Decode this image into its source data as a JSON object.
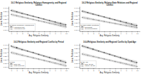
{
  "chart_data": [
    {
      "type": "line",
      "title": "3.6.1 Religious Similarity, Religious Homogeneity, and Regional Conflict",
      "x_label": "Avg. Religious Similarity",
      "y_label": "Linear Prediction",
      "legend_title": "Regional Religious Homogeneity",
      "legend": "lower left",
      "grid": false,
      "x": [
        0,
        1,
        2,
        3,
        4,
        5,
        6,
        7,
        8,
        9,
        10
      ],
      "xlim": [
        -0.5,
        10.5
      ],
      "xticks": [
        0,
        1,
        2,
        3,
        4,
        5,
        6,
        7,
        8,
        9,
        10
      ],
      "ylim": [
        0.08,
        0.42
      ],
      "yticks": [
        {
          "value": 0.1,
          "label": "0.10"
        },
        0.15,
        {
          "value": 0.2,
          "label": "0.20"
        },
        0.25,
        {
          "value": 0.3,
          "label": "0.30"
        },
        0.35,
        {
          "value": 0.4,
          "label": "0.40"
        }
      ],
      "series": [
        {
          "name": "Homogeneous",
          "color": "#333333",
          "line_style": "solid",
          "marker": "square",
          "values": [
            0.365,
            0.345,
            0.325,
            0.305,
            0.285,
            0.265,
            0.245,
            0.225,
            0.205,
            0.185,
            0.165
          ],
          "upper": [
            0.385,
            0.363,
            0.341,
            0.319,
            0.297,
            0.277,
            0.258,
            0.24,
            0.222,
            0.204,
            0.19
          ],
          "lower": [
            0.345,
            0.327,
            0.309,
            0.291,
            0.273,
            0.253,
            0.232,
            0.21,
            0.188,
            0.166,
            0.14
          ]
        },
        {
          "name": "Heterogeneous",
          "color": "#555555",
          "line_style": "dashed",
          "marker": "circle",
          "values": [
            0.31,
            0.293,
            0.276,
            0.259,
            0.242,
            0.225,
            0.208,
            0.191,
            0.174,
            0.157,
            0.14
          ],
          "upper": [
            0.33,
            0.311,
            0.292,
            0.273,
            0.256,
            0.239,
            0.223,
            0.207,
            0.191,
            0.176,
            0.163
          ],
          "lower": [
            0.29,
            0.275,
            0.26,
            0.245,
            0.228,
            0.211,
            0.193,
            0.175,
            0.157,
            0.138,
            0.117
          ]
        }
      ]
    },
    {
      "type": "line",
      "title": "3.6.2 Religious Similarity, Religion-State Relations and Regional Conflict",
      "x_label": "Avg. Religious Similarity",
      "y_label": "Linear Prediction",
      "legend_title": "Religion-State Relations",
      "legend": "lower left",
      "grid": false,
      "x": [
        0,
        1,
        2,
        3,
        4,
        5,
        6,
        7,
        8,
        9,
        10
      ],
      "xlim": [
        -0.5,
        10.5
      ],
      "xticks": [
        0,
        1,
        2,
        3,
        4,
        5,
        6,
        7,
        8,
        9,
        10
      ],
      "ylim": [
        0.08,
        0.42
      ],
      "yticks": [
        {
          "value": 0.1,
          "label": "0.10"
        },
        0.15,
        {
          "value": 0.2,
          "label": "0.20"
        },
        0.25,
        {
          "value": 0.3,
          "label": "0.30"
        },
        0.35,
        {
          "value": 0.4,
          "label": "0.40"
        }
      ],
      "series": [
        {
          "name": "Separatist",
          "color": "#333333",
          "line_style": "solid",
          "marker": "square",
          "values": [
            0.355,
            0.335,
            0.315,
            0.295,
            0.275,
            0.255,
            0.235,
            0.215,
            0.195,
            0.175,
            0.155
          ],
          "upper": [
            0.375,
            0.353,
            0.331,
            0.309,
            0.289,
            0.27,
            0.251,
            0.233,
            0.215,
            0.197,
            0.182
          ],
          "lower": [
            0.335,
            0.317,
            0.299,
            0.281,
            0.261,
            0.24,
            0.219,
            0.197,
            0.175,
            0.153,
            0.128
          ]
        },
        {
          "name": "Co-determination",
          "color": "#555555",
          "line_style": "dashed",
          "marker": "circle",
          "values": [
            0.27,
            0.256,
            0.242,
            0.228,
            0.214,
            0.2,
            0.186,
            0.172,
            0.158,
            0.144,
            0.13
          ],
          "upper": [
            0.29,
            0.274,
            0.258,
            0.242,
            0.228,
            0.214,
            0.2,
            0.187,
            0.174,
            0.161,
            0.15
          ],
          "lower": [
            0.25,
            0.238,
            0.226,
            0.214,
            0.2,
            0.186,
            0.172,
            0.157,
            0.142,
            0.127,
            0.11
          ]
        }
      ]
    },
    {
      "type": "line",
      "title": "3.6.3 Religious Similarity and Regional Conflict by Period",
      "x_label": "Avg. Religious Similarity",
      "y_label": "Linear Prediction",
      "legend_title": "Period",
      "legend": "lower left",
      "grid": false,
      "x": [
        0,
        1,
        2,
        3,
        4,
        5,
        6,
        7,
        8,
        9,
        10
      ],
      "xlim": [
        -0.5,
        10.5
      ],
      "xticks": [
        0,
        1,
        2,
        3,
        4,
        5,
        6,
        7,
        8,
        9,
        10
      ],
      "ylim": [
        0.08,
        0.42
      ],
      "yticks": [
        {
          "value": 0.1,
          "label": "0.10"
        },
        0.15,
        {
          "value": 0.2,
          "label": "0.20"
        },
        0.25,
        {
          "value": 0.3,
          "label": "0.30"
        },
        0.35,
        {
          "value": 0.4,
          "label": "0.40"
        }
      ],
      "series": [
        {
          "name": "Cold War",
          "color": "#333333",
          "line_style": "solid",
          "marker": "square",
          "values": [
            0.38,
            0.358,
            0.336,
            0.314,
            0.292,
            0.27,
            0.248,
            0.226,
            0.204,
            0.182,
            0.16
          ],
          "upper": [
            0.4,
            0.376,
            0.352,
            0.328,
            0.306,
            0.284,
            0.263,
            0.243,
            0.223,
            0.203,
            0.185
          ],
          "lower": [
            0.36,
            0.34,
            0.32,
            0.3,
            0.278,
            0.256,
            0.233,
            0.209,
            0.185,
            0.161,
            0.135
          ]
        },
        {
          "name": "Post-Cold War",
          "color": "#555555",
          "line_style": "dashed",
          "marker": "circle",
          "values": [
            0.295,
            0.277,
            0.259,
            0.241,
            0.223,
            0.205,
            0.187,
            0.169,
            0.151,
            0.133,
            0.115
          ],
          "upper": [
            0.315,
            0.295,
            0.275,
            0.255,
            0.237,
            0.219,
            0.202,
            0.185,
            0.168,
            0.151,
            0.137
          ],
          "lower": [
            0.275,
            0.259,
            0.243,
            0.227,
            0.209,
            0.191,
            0.172,
            0.153,
            0.134,
            0.115,
            0.093
          ]
        }
      ]
    },
    {
      "type": "line",
      "title": "3.6.4 Religious Similarity and Regional Conflict by Dyad Age",
      "x_label": "Avg. Religious Similarity",
      "y_label": "Linear Prediction",
      "legend_title": "Dyad Age",
      "legend": "lower left",
      "grid": false,
      "x": [
        0,
        1,
        2,
        3,
        4,
        5,
        6,
        7,
        8,
        9,
        10
      ],
      "xlim": [
        -0.5,
        10.5
      ],
      "xticks": [
        0,
        1,
        2,
        3,
        4,
        5,
        6,
        7,
        8,
        9,
        10
      ],
      "ylim": [
        0.08,
        0.42
      ],
      "yticks": [
        {
          "value": 0.1,
          "label": "0.10"
        },
        0.15,
        {
          "value": 0.2,
          "label": "0.20"
        },
        0.25,
        {
          "value": 0.3,
          "label": "0.30"
        },
        0.35,
        {
          "value": 0.4,
          "label": "0.40"
        }
      ],
      "series": [
        {
          "name": "New (Dyad)",
          "color": "#333333",
          "line_style": "solid",
          "marker": "square",
          "values": [
            0.385,
            0.362,
            0.339,
            0.316,
            0.293,
            0.27,
            0.247,
            0.224,
            0.201,
            0.178,
            0.155
          ],
          "upper": [
            0.405,
            0.38,
            0.355,
            0.33,
            0.307,
            0.284,
            0.262,
            0.241,
            0.22,
            0.2,
            0.182
          ],
          "lower": [
            0.365,
            0.344,
            0.323,
            0.302,
            0.279,
            0.256,
            0.232,
            0.207,
            0.182,
            0.156,
            0.128
          ]
        },
        {
          "name": "Mature (Dyad)",
          "color": "#555555",
          "line_style": "dashed",
          "marker": "circle",
          "values": [
            0.275,
            0.258,
            0.241,
            0.224,
            0.207,
            0.19,
            0.173,
            0.156,
            0.139,
            0.122,
            0.105
          ],
          "upper": [
            0.295,
            0.276,
            0.257,
            0.238,
            0.221,
            0.204,
            0.188,
            0.172,
            0.156,
            0.14,
            0.127
          ],
          "lower": [
            0.255,
            0.24,
            0.225,
            0.21,
            0.193,
            0.176,
            0.158,
            0.14,
            0.122,
            0.104,
            0.083
          ]
        }
      ]
    }
  ]
}
